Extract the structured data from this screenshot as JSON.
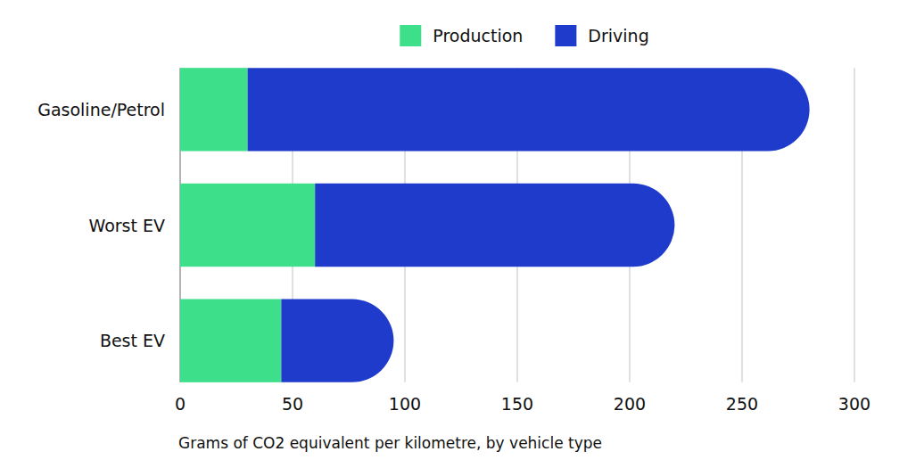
{
  "chart_data": {
    "type": "bar",
    "orientation": "horizontal",
    "stacked": true,
    "grid": true,
    "legend": "top",
    "xlabel": "Grams of CO2 equivalent per kilometre, by vehicle type",
    "categories": [
      "Gasoline/Petrol",
      "Worst EV",
      "Best EV"
    ],
    "series": [
      {
        "name": "Production",
        "color": "#3ddf8a",
        "values": [
          30,
          60,
          45
        ]
      },
      {
        "name": "Driving",
        "color": "#1f3bcc",
        "values": [
          250,
          160,
          50
        ]
      }
    ],
    "xlim": [
      0,
      300
    ],
    "xticks": [
      0,
      50,
      100,
      150,
      200,
      250,
      300
    ]
  }
}
